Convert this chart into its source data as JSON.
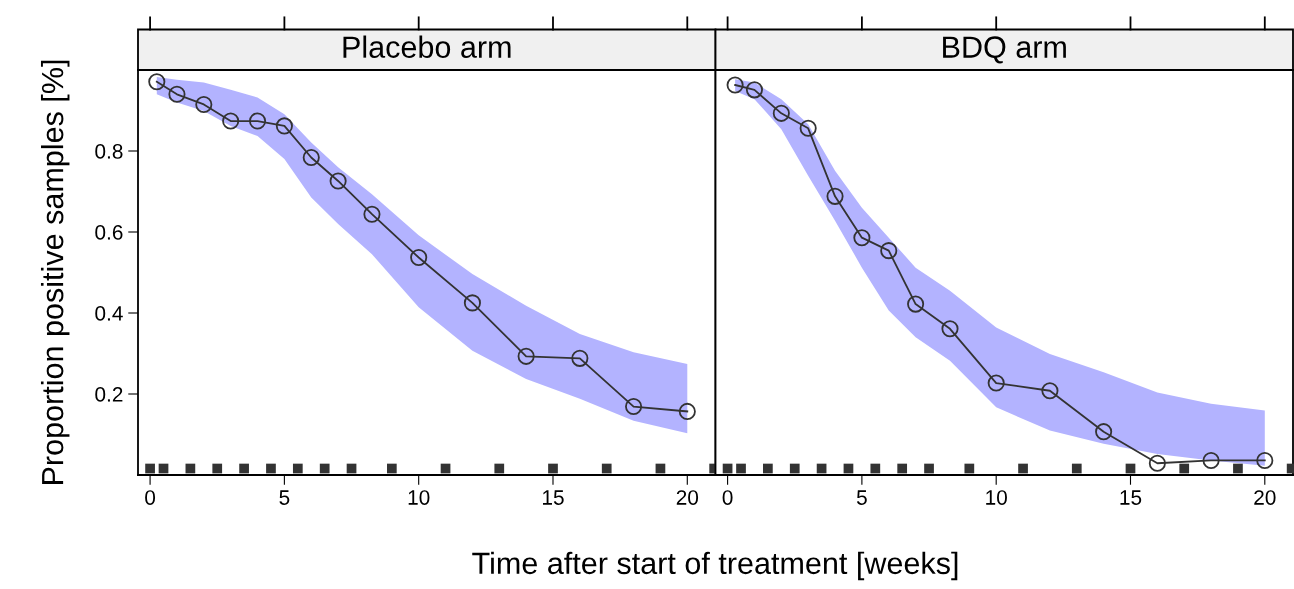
{
  "chart_data": [
    {
      "type": "line",
      "title": "Placebo arm",
      "xlabel": "Time after start of treatment [weeks]",
      "ylabel": "Proportion positive samples [%]",
      "xlim": [
        -0.45,
        21.05
      ],
      "xticks": [
        0,
        5,
        10,
        15,
        20
      ],
      "ylim": [
        0,
        1
      ],
      "yticks": [
        0.2,
        0.4,
        0.6,
        0.8
      ],
      "grid": false,
      "legend": false,
      "line_style": "solid",
      "series": [
        {
          "color": "#333333",
          "marker": "circle",
          "x": [
            0.25,
            1,
            2,
            3,
            4,
            5,
            6,
            7,
            8.26,
            10,
            12,
            14,
            16,
            18,
            20
          ],
          "values": [
            0.971,
            0.94,
            0.915,
            0.874,
            0.874,
            0.862,
            0.784,
            0.726,
            0.644,
            0.537,
            0.425,
            0.293,
            0.288,
            0.169,
            0.157
          ],
          "lower": [
            0.94,
            0.92,
            0.899,
            0.862,
            0.837,
            0.78,
            0.685,
            0.62,
            0.545,
            0.414,
            0.307,
            0.237,
            0.188,
            0.134,
            0.103
          ],
          "upper": [
            0.983,
            0.976,
            0.969,
            0.951,
            0.932,
            0.891,
            0.821,
            0.76,
            0.693,
            0.592,
            0.496,
            0.418,
            0.348,
            0.303,
            0.274
          ]
        },
        {
          "type": "scatter",
          "marker": "square",
          "color": "#333333",
          "x": [
            0,
            0.5,
            1.5,
            2.5,
            3.5,
            4.5,
            5.5,
            6.5,
            7.5,
            9,
            11,
            13,
            15,
            17,
            19,
            21
          ],
          "values": [
            0.016,
            0.016,
            0.016,
            0.016,
            0.016,
            0.016,
            0.016,
            0.016,
            0.016,
            0.016,
            0.016,
            0.016,
            0.016,
            0.016,
            0.016,
            0.016
          ]
        }
      ]
    },
    {
      "type": "line",
      "title": "BDQ arm",
      "xlim": [
        -0.45,
        21.05
      ],
      "xticks": [
        0,
        5,
        10,
        15,
        20
      ],
      "ylim": [
        0,
        1
      ],
      "yticks": [
        0.2,
        0.4,
        0.6,
        0.8
      ],
      "tick_labels": "x",
      "grid": false,
      "legend": false,
      "line_style": "solid",
      "series": [
        {
          "color": "#333333",
          "marker": "circle",
          "x": [
            0.28,
            1,
            2,
            3,
            4,
            5,
            6,
            7,
            8.28,
            10,
            12,
            14,
            16,
            18,
            20
          ],
          "values": [
            0.963,
            0.951,
            0.893,
            0.856,
            0.688,
            0.586,
            0.554,
            0.422,
            0.361,
            0.227,
            0.208,
            0.107,
            0.029,
            0.036,
            0.036
          ],
          "lower": [
            0.948,
            0.928,
            0.854,
            0.739,
            0.628,
            0.512,
            0.406,
            0.34,
            0.282,
            0.167,
            0.11,
            0.077,
            0.052,
            0.036,
            0.023
          ],
          "upper": [
            0.977,
            0.969,
            0.928,
            0.866,
            0.751,
            0.66,
            0.586,
            0.512,
            0.455,
            0.364,
            0.299,
            0.254,
            0.204,
            0.176,
            0.159
          ]
        },
        {
          "type": "scatter",
          "marker": "square",
          "color": "#333333",
          "x": [
            0,
            0.5,
            1.5,
            2.5,
            3.5,
            4.5,
            5.5,
            6.5,
            7.5,
            9,
            11,
            13,
            15,
            17,
            19,
            21
          ],
          "values": [
            0.016,
            0.016,
            0.016,
            0.016,
            0.016,
            0.016,
            0.016,
            0.016,
            0.016,
            0.016,
            0.016,
            0.016,
            0.016,
            0.016,
            0.016,
            0.016
          ]
        }
      ]
    }
  ]
}
